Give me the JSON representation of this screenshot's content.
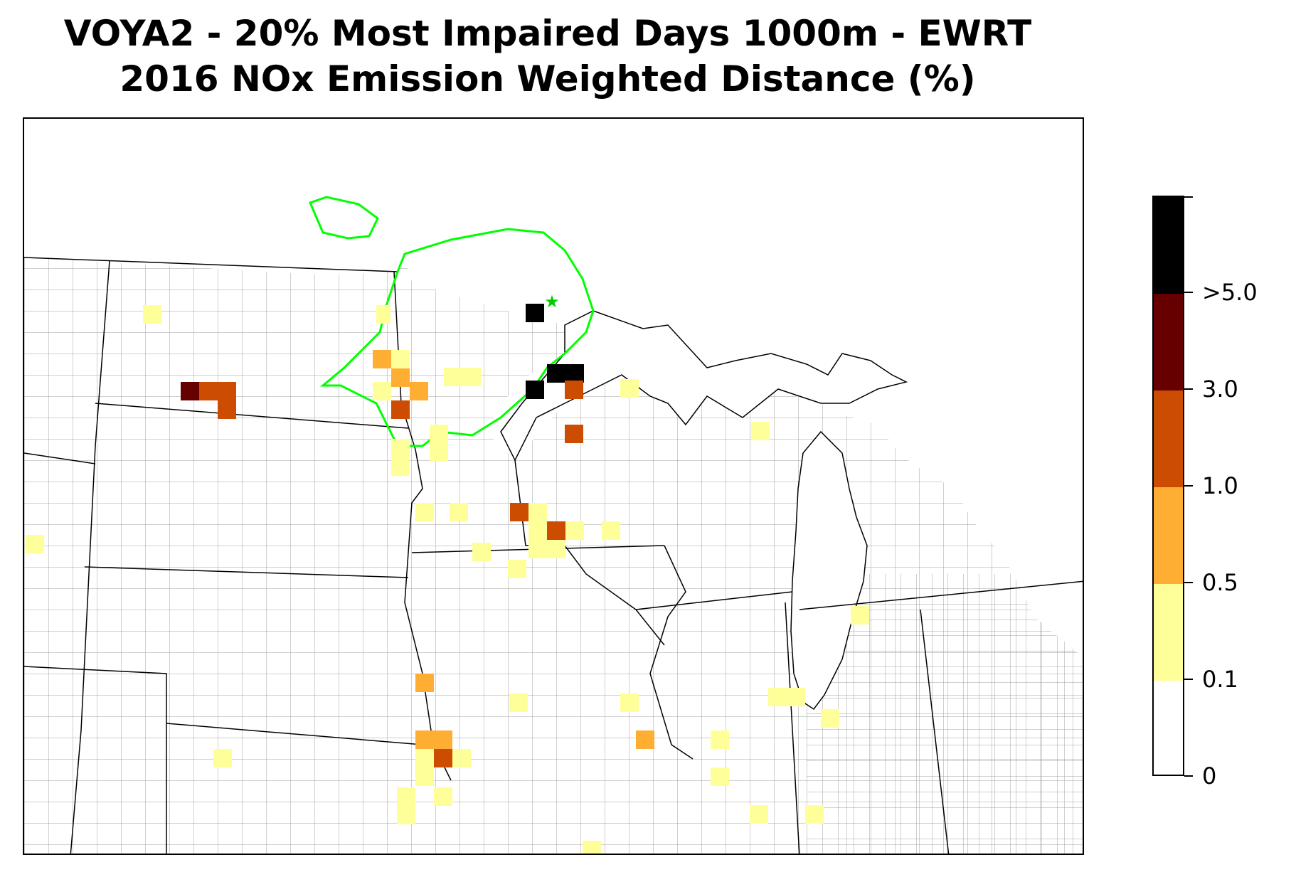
{
  "title": {
    "line1": "VOYA2 - 20% Most Impaired Days 1000m - EWRT",
    "line2": "2016 NOx Emission Weighted Distance (%)"
  },
  "legend": {
    "type": "colorbar",
    "orientation": "vertical",
    "bins": [
      {
        "range": [
          0,
          0.1
        ],
        "color": "#ffffff"
      },
      {
        "range": [
          0.1,
          0.5
        ],
        "color": "#ffff99"
      },
      {
        "range": [
          0.5,
          1.0
        ],
        "color": "#fdae33"
      },
      {
        "range": [
          1.0,
          3.0
        ],
        "color": "#cc4c02"
      },
      {
        "range": [
          3.0,
          5.0
        ],
        "color": "#660000"
      },
      {
        "range": [
          5.0,
          null
        ],
        "color": "#000000"
      }
    ],
    "tick_labels": [
      "0",
      "0.1",
      "0.5",
      "1.0",
      "3.0",
      ">5.0"
    ]
  },
  "colors": {
    "contour": "#00ff00",
    "receptor_marker": "#00cc00",
    "state_border": "#000000",
    "county_border": "#a0a0a0"
  },
  "receptor": {
    "marker": "star-icon",
    "name": "VOYA2"
  }
}
